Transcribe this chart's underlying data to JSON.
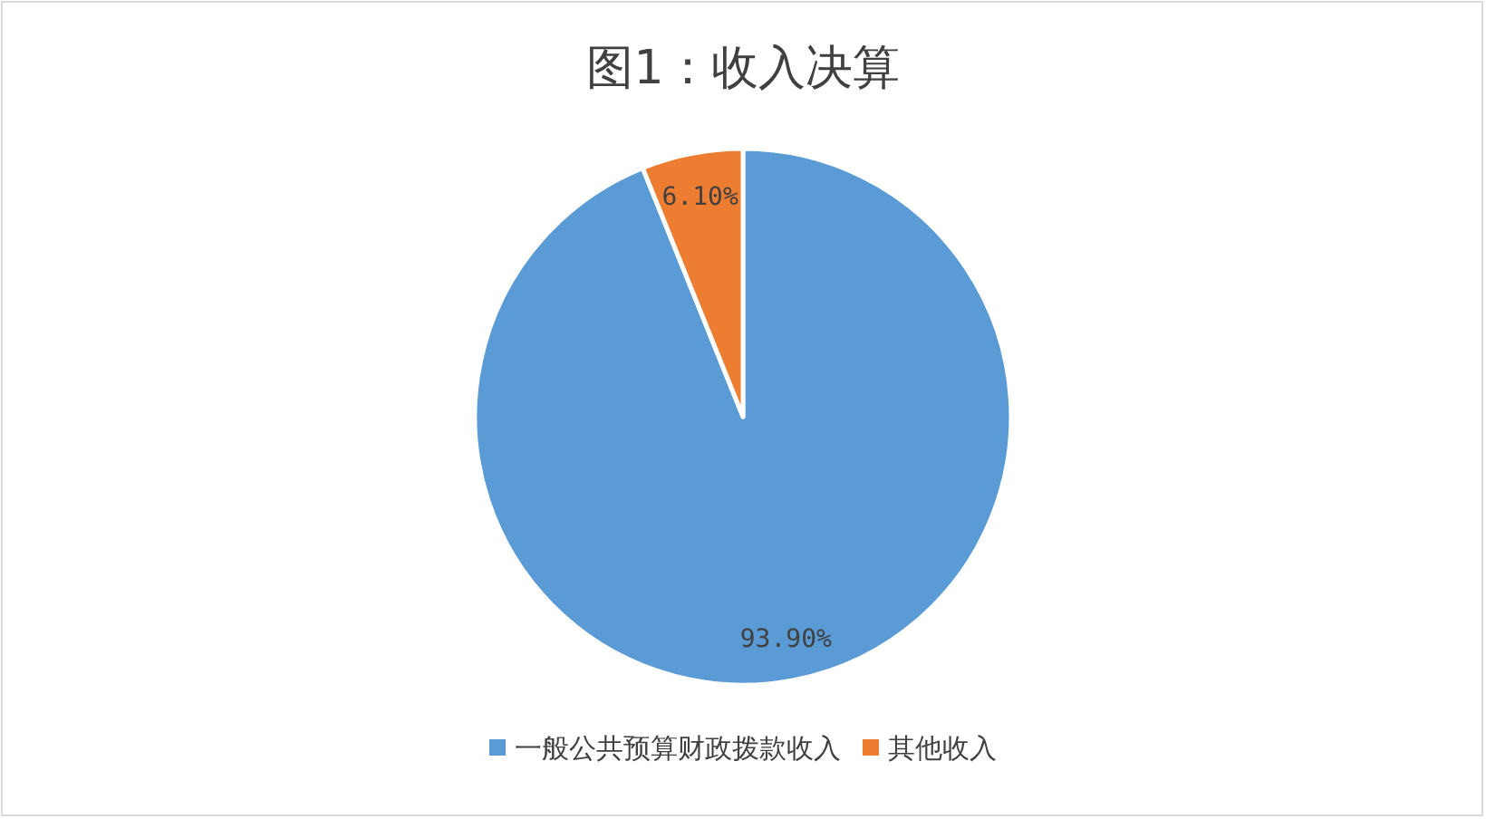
{
  "chart_data": {
    "type": "pie",
    "title": "图1：收入决算",
    "categories": [
      "一般公共预算财政拨款收入",
      "其他收入"
    ],
    "values": [
      93.9,
      6.1
    ],
    "colors": [
      "#5b9bd5",
      "#ed7d31"
    ],
    "value_labels": [
      "93.90%",
      "6.10%"
    ],
    "legend": "bottom"
  }
}
